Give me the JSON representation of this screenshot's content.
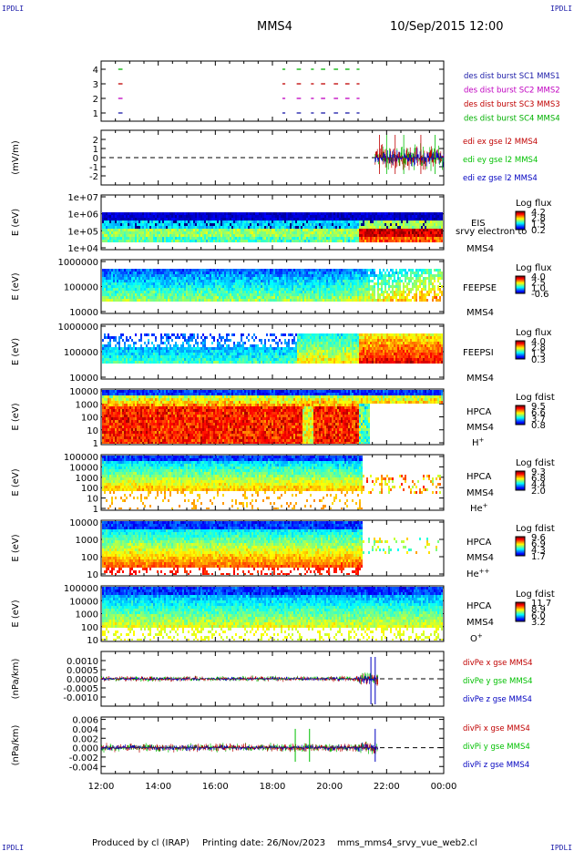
{
  "corner_label": "IPDLI",
  "header": {
    "spacecraft": "MMS4",
    "datetime": "10/Sep/2015 12:00"
  },
  "footer": {
    "produced_by": "Produced by cl (IRAP)",
    "printing_date": "Printing date: 26/Nov/2023",
    "script": "mms_mms4_srvy_vue_web2.cl"
  },
  "colors": {
    "mms1": "#1a1aa8",
    "mms2": "#c000c0",
    "mms3": "#c00000",
    "mms4": "#00b000",
    "x": "#c00000",
    "y": "#00c000",
    "z": "#0000c0"
  },
  "chart_data": [
    {
      "id": "burst",
      "type": "scatter",
      "yticks": [
        "1",
        "2",
        "3",
        "4"
      ],
      "legend": [
        "des dist burst SC1 MMS1",
        "des dist burst SC2 MMS2",
        "des dist burst SC3 MMS3",
        "des dist burst SC4 MMS4"
      ],
      "segments_h": [
        [
          12.6,
          12.75
        ],
        [
          18.35,
          18.45
        ],
        [
          18.85,
          19.0
        ],
        [
          19.35,
          19.45
        ],
        [
          19.7,
          19.85
        ],
        [
          20.15,
          20.3
        ],
        [
          20.55,
          20.7
        ],
        [
          20.95,
          21.05
        ]
      ]
    },
    {
      "id": "edi",
      "type": "line",
      "ylabel": "(mV/m)",
      "yticks": [
        "2",
        "1",
        "0",
        "-1",
        "-2"
      ],
      "ylim": [
        -3,
        3
      ],
      "legend": [
        "edi ex gse l2 MMS4",
        "edi ey gse l2 MMS4",
        "edi ez gse l2 MMS4"
      ],
      "data_start_h": 21.6
    },
    {
      "id": "eis",
      "type": "heatmap",
      "ylabel": "E (eV)",
      "yticks": [
        "1e+07",
        "1e+06",
        "1e+05",
        "1e+04"
      ],
      "labels": [
        "EIS",
        "srvy electron to",
        "MMS4"
      ],
      "cbar_title": "Log flux",
      "cbar_ticks": [
        "4.2",
        "2.8",
        "1.5",
        "0.2"
      ]
    },
    {
      "id": "feepse",
      "type": "heatmap",
      "ylabel": "E (eV)",
      "yticks": [
        "1000000",
        "100000",
        "10000"
      ],
      "labels": [
        "FEEPSE",
        "MMS4"
      ],
      "cbar_title": "Log flux",
      "cbar_ticks": [
        "4.0",
        "2.5",
        "1.0",
        "-0.6"
      ]
    },
    {
      "id": "feepsi",
      "type": "heatmap",
      "ylabel": "E (eV)",
      "yticks": [
        "1000000",
        "100000",
        "10000"
      ],
      "labels": [
        "FEEPSI",
        "MMS4"
      ],
      "cbar_title": "Log flux",
      "cbar_ticks": [
        "4.0",
        "2.8",
        "1.5",
        "0.3"
      ]
    },
    {
      "id": "hpca_h",
      "type": "heatmap",
      "ylabel": "E (eV)",
      "yticks": [
        "10000",
        "1000",
        "100",
        "10",
        "1"
      ],
      "labels": [
        "HPCA",
        "MMS4",
        "H+"
      ],
      "cbar_title": "Log fdist",
      "cbar_ticks": [
        "9.5",
        "6.6",
        "3.7",
        "0.8"
      ]
    },
    {
      "id": "hpca_he",
      "type": "heatmap",
      "ylabel": "E (eV)",
      "yticks": [
        "100000",
        "10000",
        "1000",
        "100",
        "10",
        "1"
      ],
      "labels": [
        "HPCA",
        "MMS4",
        "He+"
      ],
      "cbar_title": "Log fdist",
      "cbar_ticks": [
        "9.3",
        "6.8",
        "4.4",
        "2.0"
      ]
    },
    {
      "id": "hpca_hepp",
      "type": "heatmap",
      "ylabel": "E (eV)",
      "yticks": [
        "10000",
        "1000",
        "100",
        "10"
      ],
      "labels": [
        "HPCA",
        "MMS4",
        "He++"
      ],
      "cbar_title": "Log fdist",
      "cbar_ticks": [
        "9.6",
        "6.9",
        "4.3",
        "1.7"
      ]
    },
    {
      "id": "hpca_o",
      "type": "heatmap",
      "ylabel": "E (eV)",
      "yticks": [
        "100000",
        "10000",
        "1000",
        "100",
        "10"
      ],
      "labels": [
        "HPCA",
        "MMS4",
        "O+"
      ],
      "cbar_title": "Log fdist",
      "cbar_ticks": [
        "11.7",
        "8.9",
        "6.0",
        "3.2"
      ]
    },
    {
      "id": "divpe",
      "type": "line",
      "ylabel": "(nPa/km)",
      "yticks": [
        "0.0010",
        "0.0005",
        "0.0000",
        "-0.0005",
        "-0.0010"
      ],
      "ylim": [
        -0.0015,
        0.0015
      ],
      "legend": [
        "divPe x gse MMS4",
        "divPe y gse MMS4",
        "divPe z gse MMS4"
      ],
      "data_end_h": 21.7
    },
    {
      "id": "divpi",
      "type": "line",
      "ylabel": "(nPa/km)",
      "yticks": [
        "0.006",
        "0.004",
        "0.002",
        "0.000",
        "-0.002",
        "-0.004"
      ],
      "ylim": [
        -0.0055,
        0.0065
      ],
      "legend": [
        "divPi x gse MMS4",
        "divPi y gse MMS4",
        "divPi z gse MMS4"
      ],
      "data_end_h": 21.7
    }
  ],
  "xaxis": {
    "ticks": [
      "12:00",
      "14:00",
      "16:00",
      "18:00",
      "20:00",
      "22:00",
      "00:00"
    ],
    "range_h": [
      12,
      24
    ]
  }
}
